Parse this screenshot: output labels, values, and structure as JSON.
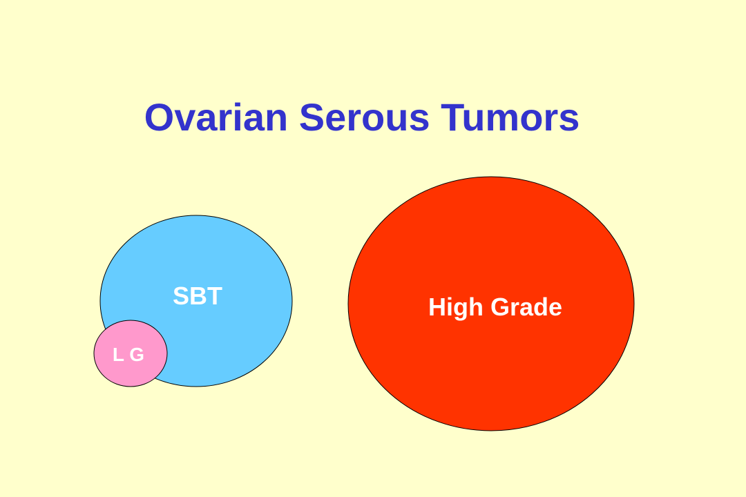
{
  "slide": {
    "title": "Ovarian Serous Tumors"
  },
  "colors": {
    "background": "#FFFFCC",
    "title": "#3333CC",
    "outline": "#000000",
    "label": "#FFFFFF"
  },
  "diagram": {
    "nodes": [
      {
        "id": "sbt",
        "label": "SBT",
        "fill": "#66CCFF"
      },
      {
        "id": "lg",
        "label": "L G",
        "fill": "#FF99CC"
      },
      {
        "id": "high-grade",
        "label": "High Grade",
        "fill": "#FF3300"
      }
    ]
  }
}
